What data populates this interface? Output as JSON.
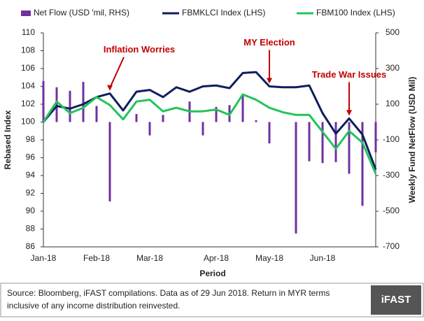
{
  "chart_data": {
    "type": "bar-line",
    "x_label": "Period",
    "y_label": "Rebased Index",
    "y2_label": "Weekly Fund NetFlow (USD Mil)",
    "categories": [
      "Jan-18",
      null,
      null,
      null,
      "Feb-18",
      null,
      null,
      null,
      "Mar-18",
      null,
      null,
      null,
      null,
      "Apr-18",
      null,
      null,
      null,
      "May-18",
      null,
      null,
      null,
      "Jun-18",
      null,
      null,
      null,
      null
    ],
    "series": [
      {
        "name": "Net Flow (USD 'mil, RHS)",
        "color": "#7030a0",
        "kind": "bar",
        "axis": "y2",
        "values": [
          230,
          195,
          175,
          225,
          90,
          -445,
          0,
          45,
          -75,
          40,
          0,
          115,
          -75,
          85,
          95,
          150,
          10,
          -120,
          0,
          -625,
          -220,
          -230,
          -225,
          -290,
          -470,
          -170
        ]
      },
      {
        "name": "FBMKLCI Index (LHS)",
        "color": "#0d1f5c",
        "kind": "line",
        "values": [
          100,
          101.8,
          101.5,
          102.0,
          102.8,
          103.2,
          101.3,
          103.4,
          103.6,
          102.8,
          103.9,
          103.4,
          104.0,
          104.1,
          103.8,
          105.5,
          105.6,
          104.0,
          103.9,
          103.9,
          104.1,
          101.0,
          98.7,
          100.4,
          98.6,
          94.7
        ]
      },
      {
        "name": "FBM100 Index (LHS)",
        "color": "#22c45a",
        "kind": "line",
        "values": [
          100,
          102.3,
          101.0,
          101.6,
          102.8,
          101.9,
          100.3,
          102.3,
          102.5,
          101.2,
          101.6,
          101.2,
          101.2,
          101.4,
          100.8,
          103.1,
          102.5,
          101.6,
          101.1,
          100.8,
          100.8,
          98.9,
          97.0,
          99.0,
          97.7,
          94.2
        ]
      }
    ],
    "ylim": [
      86,
      110
    ],
    "yticks": [
      86,
      88,
      90,
      92,
      94,
      96,
      98,
      100,
      102,
      104,
      106,
      108,
      110
    ],
    "y2lim": [
      -700,
      500
    ],
    "y2ticks": [
      -700,
      -500,
      -300,
      -100,
      100,
      300,
      500
    ],
    "annotations": [
      {
        "text": "Inflation Worries",
        "index": 5
      },
      {
        "text": "MY Election",
        "index": 17
      },
      {
        "text": "Trade War Issues",
        "index": 23
      }
    ],
    "annotation_color": "#c00000"
  },
  "footer": {
    "text_lines": [
      "Source: Bloomberg, iFAST compilations. Data as of 29 Jun 2018.  Return in MYR terms",
      "inclusive of any income distribution reinvested."
    ],
    "logo": "iFAST"
  }
}
